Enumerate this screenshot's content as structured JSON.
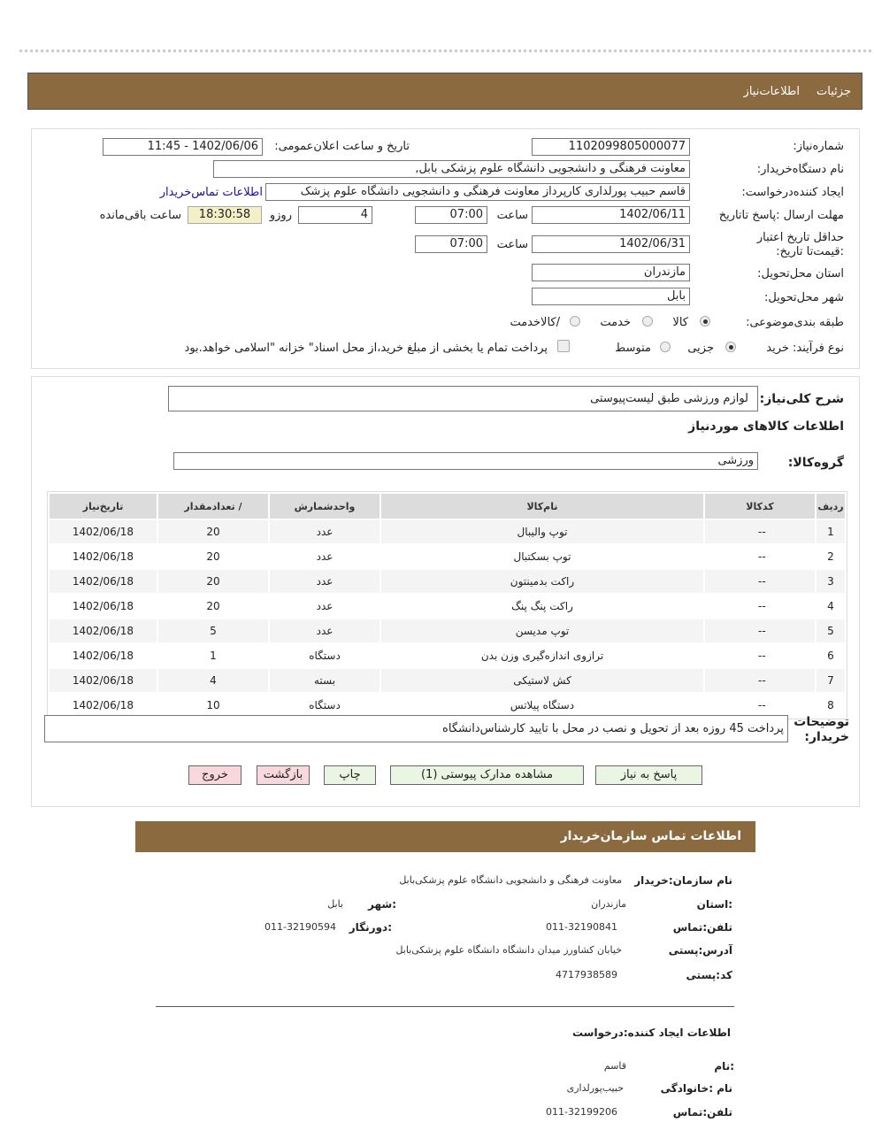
{
  "header": {
    "tab_details": "جزئیات",
    "tab_info": "اطلاعات‌نیاز"
  },
  "form": {
    "need_number_label": "شماره‌نیاز:",
    "need_number": "1102099805000077",
    "announce_label": "تاریخ و ساعت اعلان‌عمومی:",
    "announce_value": "1402/06/06 - 11:45",
    "buyer_label": "نام دستگاه‌خریدار:",
    "buyer_value": "معاونت فرهنگی و دانشجویی دانشگاه علوم پزشکی بابل,",
    "creator_label": "ایجاد کننده‌درخواست:",
    "creator_value": "قاسم حبیب پورلداری کارپرداز معاونت فرهنگی و دانشجویی دانشگاه علوم پزشک",
    "contact_link": "اطلاعات تماس‌خریدار",
    "deadline_label": "مهلت ارسال :پاسخ تا‌تاریخ",
    "deadline_date": "1402/06/11",
    "time_label": "ساعت",
    "deadline_time": "07:00",
    "days": "4",
    "days_label": "روزو",
    "remaining": "18:30:58",
    "remaining_label": "ساعت باقی‌مانده",
    "validity_label": "حداقل تاریخ اعتبار :قیمت‌تا تاریخ:",
    "validity_date": "1402/06/31",
    "validity_time": "07:00",
    "province_label": "استان محل‌تحویل:",
    "province": "مازندران",
    "city_label": "شهر محل‌تحویل:",
    "city": "بابل",
    "category_label": "طبقه بندی‌موضوعی:",
    "cat_goods": "کالا",
    "cat_service": "خدمت",
    "cat_both": "/کالاخدمت",
    "process_label": "نوع فرآیند: خرید",
    "proc_partial": "جزیی",
    "proc_medium": "متوسط",
    "payment_note": "پرداخت تمام یا بخشی از مبلغ خرید،از محل اسناد\" خزانه \"اسلامی خواهد.بود"
  },
  "details": {
    "summary_label": "شرح کلی‌نیاز:",
    "summary": "لوازم ورزشی طبق لیست‌پیوستی",
    "goods_title": "اطلاعات کالاهای موردنیاز",
    "group_label": "گروه‌کالا:",
    "group": "ورزشی",
    "columns": [
      "ردیف",
      "کدکالا",
      "نام‌کالا",
      "واحدشمارش",
      "/ تعدادمقدار",
      "تاریخ‌نیاز"
    ],
    "rows": [
      [
        "1",
        "--",
        "توپ والیبال",
        "عدد",
        "20",
        "1402/06/18"
      ],
      [
        "2",
        "--",
        "توپ بسکتبال",
        "عدد",
        "20",
        "1402/06/18"
      ],
      [
        "3",
        "--",
        "راکت بدمینتون",
        "عدد",
        "20",
        "1402/06/18"
      ],
      [
        "4",
        "--",
        "راکت پنگ پنگ",
        "عدد",
        "20",
        "1402/06/18"
      ],
      [
        "5",
        "--",
        "توپ مدیسن",
        "عدد",
        "5",
        "1402/06/18"
      ],
      [
        "6",
        "--",
        "ترازوی اندازه‌گیری وزن بدن",
        "دستگاه",
        "1",
        "1402/06/18"
      ],
      [
        "7",
        "--",
        "کش لاستیکی",
        "بسته",
        "4",
        "1402/06/18"
      ],
      [
        "8",
        "--",
        "دستگاه پیلاتس",
        "دستگاه",
        "10",
        "1402/06/18"
      ]
    ],
    "notes_label": "توضیحات خریدار:",
    "notes": "پرداخت 45 روزه بعد از تحویل و نصب در محل با تایید کارشناس‌دانشگاه"
  },
  "buttons": {
    "reply": "پاسخ به نیاز",
    "attachments": "مشاهده مدارک پیوستی (1)",
    "print": "چاپ",
    "back": "بازگشت",
    "exit": "خروج"
  },
  "contact": {
    "title": "اطلاعات  تماس سازمان‌خریدار",
    "org_label": "نام سازمان:خریدار",
    "org": "معاونت فرهنگی و دانشجویی دانشگاه علوم پزشکی‌بابل",
    "province_label": ":استان",
    "province": "مازندران",
    "city_label": ":شهر",
    "city": "بابل",
    "phone_label": "تلفن:تماس",
    "phone": "011-32190841",
    "fax_label": ":دورنگار",
    "fax": "011-32190594",
    "address_label": "آدرس:پستی",
    "address": "خیابان کشاورز میدان دانشگاه دانشگاه علوم پزشکی‌بابل",
    "postal_label": "کد:پستی",
    "postal": "4717938589",
    "creator_title": "اطلاعات ایجاد کننده:درخواست",
    "name_label": ":نام",
    "name": "قاسم",
    "family_label": "نام :خانوادگی",
    "family": "حبیب‌پورلداری",
    "cphone_label": "تلفن:تماس",
    "cphone": "011-32199206"
  }
}
